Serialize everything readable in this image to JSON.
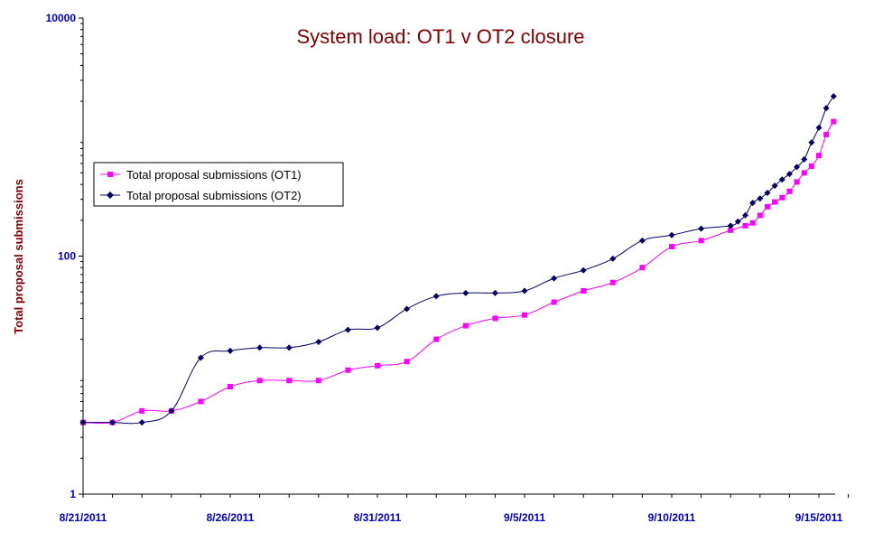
{
  "chart_data": {
    "type": "line",
    "title": "System load: OT1 v OT2 closure",
    "xlabel": "",
    "ylabel": "Total proposal submissions",
    "y_scale": "log",
    "ylim": [
      1,
      10000
    ],
    "y_ticks": [
      "1",
      "100",
      "10000"
    ],
    "x_range": [
      "8/21/2011",
      "9/16/2011"
    ],
    "x_ticks": [
      "8/21/2011",
      "8/26/2011",
      "8/31/2011",
      "9/5/2011",
      "9/10/2011",
      "9/15/2011"
    ],
    "grid": false,
    "legend_position": "left",
    "series": [
      {
        "name": "Total proposal submissions (OT1)",
        "color": "#ff00ff",
        "marker": "square",
        "points": [
          {
            "x": "2011-08-21",
            "y": 4
          },
          {
            "x": "2011-08-22",
            "y": 4
          },
          {
            "x": "2011-08-23",
            "y": 5
          },
          {
            "x": "2011-08-24",
            "y": 5
          },
          {
            "x": "2011-08-25",
            "y": 6
          },
          {
            "x": "2011-08-26",
            "y": 8
          },
          {
            "x": "2011-08-27",
            "y": 9
          },
          {
            "x": "2011-08-28",
            "y": 9
          },
          {
            "x": "2011-08-29",
            "y": 9
          },
          {
            "x": "2011-08-30",
            "y": 11
          },
          {
            "x": "2011-08-31",
            "y": 12
          },
          {
            "x": "2011-09-01",
            "y": 13
          },
          {
            "x": "2011-09-02",
            "y": 20
          },
          {
            "x": "2011-09-03",
            "y": 26
          },
          {
            "x": "2011-09-04",
            "y": 30
          },
          {
            "x": "2011-09-05",
            "y": 32
          },
          {
            "x": "2011-09-06",
            "y": 41
          },
          {
            "x": "2011-09-07",
            "y": 51
          },
          {
            "x": "2011-09-08",
            "y": 60
          },
          {
            "x": "2011-09-09",
            "y": 80
          },
          {
            "x": "2011-09-10",
            "y": 120
          },
          {
            "x": "2011-09-11",
            "y": 135
          },
          {
            "x": "2011-09-12",
            "y": 165
          },
          {
            "x": "2011-09-12.5",
            "y": 180
          },
          {
            "x": "2011-09-12.75",
            "y": 190
          },
          {
            "x": "2011-09-13",
            "y": 220
          },
          {
            "x": "2011-09-13.25",
            "y": 260
          },
          {
            "x": "2011-09-13.5",
            "y": 285
          },
          {
            "x": "2011-09-13.75",
            "y": 310
          },
          {
            "x": "2011-09-14",
            "y": 350
          },
          {
            "x": "2011-09-14.25",
            "y": 420
          },
          {
            "x": "2011-09-14.5",
            "y": 500
          },
          {
            "x": "2011-09-14.75",
            "y": 570
          },
          {
            "x": "2011-09-15",
            "y": 700
          },
          {
            "x": "2011-09-15.25",
            "y": 1050
          },
          {
            "x": "2011-09-15.5",
            "y": 1350
          }
        ]
      },
      {
        "name": "Total proposal submissions (OT2)",
        "color": "#000066",
        "marker": "diamond",
        "points": [
          {
            "x": "2011-08-21",
            "y": 4
          },
          {
            "x": "2011-08-22",
            "y": 4
          },
          {
            "x": "2011-08-23",
            "y": 4
          },
          {
            "x": "2011-08-24",
            "y": 5
          },
          {
            "x": "2011-08-25",
            "y": 14
          },
          {
            "x": "2011-08-26",
            "y": 16
          },
          {
            "x": "2011-08-27",
            "y": 17
          },
          {
            "x": "2011-08-28",
            "y": 17
          },
          {
            "x": "2011-08-29",
            "y": 19
          },
          {
            "x": "2011-08-30",
            "y": 24
          },
          {
            "x": "2011-08-31",
            "y": 25
          },
          {
            "x": "2011-09-01",
            "y": 36
          },
          {
            "x": "2011-09-02",
            "y": 46
          },
          {
            "x": "2011-09-03",
            "y": 49
          },
          {
            "x": "2011-09-04",
            "y": 49
          },
          {
            "x": "2011-09-05",
            "y": 51
          },
          {
            "x": "2011-09-06",
            "y": 65
          },
          {
            "x": "2011-09-07",
            "y": 76
          },
          {
            "x": "2011-09-08",
            "y": 95
          },
          {
            "x": "2011-09-09",
            "y": 135
          },
          {
            "x": "2011-09-10",
            "y": 150
          },
          {
            "x": "2011-09-11",
            "y": 170
          },
          {
            "x": "2011-09-12",
            "y": 180
          },
          {
            "x": "2011-09-12.25",
            "y": 195
          },
          {
            "x": "2011-09-12.5",
            "y": 220
          },
          {
            "x": "2011-09-12.75",
            "y": 280
          },
          {
            "x": "2011-09-13",
            "y": 305
          },
          {
            "x": "2011-09-13.25",
            "y": 340
          },
          {
            "x": "2011-09-13.5",
            "y": 390
          },
          {
            "x": "2011-09-13.75",
            "y": 440
          },
          {
            "x": "2011-09-14",
            "y": 490
          },
          {
            "x": "2011-09-14.25",
            "y": 560
          },
          {
            "x": "2011-09-14.5",
            "y": 650
          },
          {
            "x": "2011-09-14.75",
            "y": 900
          },
          {
            "x": "2011-09-15",
            "y": 1200
          },
          {
            "x": "2011-09-15.25",
            "y": 1750
          },
          {
            "x": "2011-09-15.5",
            "y": 2200
          }
        ]
      }
    ]
  }
}
